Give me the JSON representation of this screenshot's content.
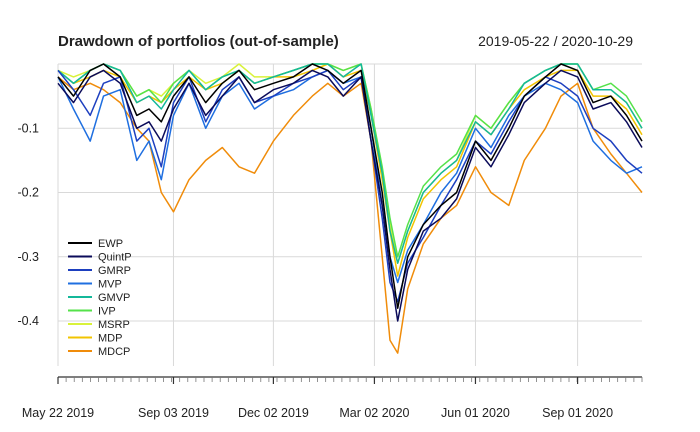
{
  "chart_data": {
    "type": "line",
    "title": "Drawdown of portfolios (out-of-sample)",
    "date_range": "2019-05-22 / 2020-10-29",
    "x_start": "2019-05-22",
    "x_end": "2020-10-29",
    "ylim": [
      -0.47,
      0.0
    ],
    "y_ticks": [
      {
        "value": -0.1,
        "label": "-0.1"
      },
      {
        "value": -0.2,
        "label": "-0.2"
      },
      {
        "value": -0.3,
        "label": "-0.3"
      },
      {
        "value": -0.4,
        "label": "-0.4"
      }
    ],
    "x_ticks": [
      {
        "date": "2019-05-22",
        "label": "May 22 2019"
      },
      {
        "date": "2019-09-03",
        "label": "Sep 03 2019"
      },
      {
        "date": "2019-12-02",
        "label": "Dec 02 2019"
      },
      {
        "date": "2020-03-02",
        "label": "Mar 02 2020"
      },
      {
        "date": "2020-06-01",
        "label": "Jun 01 2020"
      },
      {
        "date": "2020-09-01",
        "label": "Sep 01 2020"
      }
    ],
    "grid": true,
    "legend_position": "bottom-left",
    "series": [
      {
        "name": "EWP",
        "color": "#000000",
        "x": [
          "2019-05-22",
          "2019-06-05",
          "2019-06-20",
          "2019-07-02",
          "2019-07-17",
          "2019-08-01",
          "2019-08-12",
          "2019-08-23",
          "2019-09-03",
          "2019-09-17",
          "2019-10-02",
          "2019-10-17",
          "2019-11-01",
          "2019-11-15",
          "2019-12-02",
          "2019-12-20",
          "2020-01-06",
          "2020-01-20",
          "2020-02-03",
          "2020-02-19",
          "2020-02-28",
          "2020-03-09",
          "2020-03-16",
          "2020-03-23",
          "2020-04-01",
          "2020-04-15",
          "2020-05-01",
          "2020-05-15",
          "2020-06-01",
          "2020-06-15",
          "2020-07-01",
          "2020-07-15",
          "2020-08-03",
          "2020-08-17",
          "2020-09-01",
          "2020-09-15",
          "2020-10-01",
          "2020-10-15",
          "2020-10-29"
        ],
        "values": [
          -0.02,
          -0.05,
          -0.01,
          0,
          -0.02,
          -0.08,
          -0.07,
          -0.09,
          -0.05,
          -0.02,
          -0.06,
          -0.03,
          -0.01,
          -0.04,
          -0.03,
          -0.02,
          0,
          -0.01,
          -0.03,
          -0.01,
          -0.1,
          -0.2,
          -0.3,
          -0.38,
          -0.3,
          -0.25,
          -0.22,
          -0.2,
          -0.12,
          -0.15,
          -0.1,
          -0.05,
          -0.02,
          0,
          -0.01,
          -0.06,
          -0.05,
          -0.08,
          -0.12
        ]
      },
      {
        "name": "QuintP",
        "color": "#0b0b5a",
        "x": [
          "2019-05-22",
          "2019-06-05",
          "2019-06-20",
          "2019-07-02",
          "2019-07-17",
          "2019-08-01",
          "2019-08-12",
          "2019-08-23",
          "2019-09-03",
          "2019-09-17",
          "2019-10-02",
          "2019-10-17",
          "2019-11-01",
          "2019-11-15",
          "2019-12-02",
          "2019-12-20",
          "2020-01-06",
          "2020-01-20",
          "2020-02-03",
          "2020-02-19",
          "2020-02-28",
          "2020-03-09",
          "2020-03-16",
          "2020-03-23",
          "2020-04-01",
          "2020-04-15",
          "2020-05-01",
          "2020-05-15",
          "2020-06-01",
          "2020-06-15",
          "2020-07-01",
          "2020-07-15",
          "2020-08-03",
          "2020-08-17",
          "2020-09-01",
          "2020-09-15",
          "2020-10-01",
          "2020-10-15",
          "2020-10-29"
        ],
        "values": [
          -0.03,
          -0.06,
          -0.02,
          -0.01,
          -0.03,
          -0.1,
          -0.09,
          -0.12,
          -0.07,
          -0.03,
          -0.08,
          -0.05,
          -0.02,
          -0.06,
          -0.04,
          -0.03,
          -0.01,
          -0.02,
          -0.05,
          -0.02,
          -0.12,
          -0.22,
          -0.32,
          -0.4,
          -0.32,
          -0.26,
          -0.24,
          -0.21,
          -0.13,
          -0.16,
          -0.11,
          -0.06,
          -0.03,
          -0.01,
          -0.02,
          -0.07,
          -0.06,
          -0.09,
          -0.13
        ]
      },
      {
        "name": "GMRP",
        "color": "#1d3fbf",
        "x": [
          "2019-05-22",
          "2019-06-05",
          "2019-06-20",
          "2019-07-02",
          "2019-07-17",
          "2019-08-01",
          "2019-08-12",
          "2019-08-23",
          "2019-09-03",
          "2019-09-17",
          "2019-10-02",
          "2019-10-17",
          "2019-11-01",
          "2019-11-15",
          "2019-12-02",
          "2019-12-20",
          "2020-01-06",
          "2020-01-20",
          "2020-02-03",
          "2020-02-19",
          "2020-02-28",
          "2020-03-09",
          "2020-03-16",
          "2020-03-23",
          "2020-04-01",
          "2020-04-15",
          "2020-05-01",
          "2020-05-15",
          "2020-06-01",
          "2020-06-15",
          "2020-07-01",
          "2020-07-15",
          "2020-08-03",
          "2020-08-17",
          "2020-09-01",
          "2020-09-15",
          "2020-10-01",
          "2020-10-15",
          "2020-10-29"
        ],
        "values": [
          -0.01,
          -0.04,
          -0.08,
          -0.03,
          -0.02,
          -0.12,
          -0.1,
          -0.16,
          -0.06,
          -0.02,
          -0.09,
          -0.04,
          -0.02,
          -0.06,
          -0.05,
          -0.03,
          -0.02,
          -0.01,
          -0.04,
          -0.02,
          -0.12,
          -0.24,
          -0.34,
          -0.37,
          -0.31,
          -0.27,
          -0.22,
          -0.18,
          -0.12,
          -0.14,
          -0.09,
          -0.05,
          -0.02,
          -0.03,
          -0.05,
          -0.1,
          -0.12,
          -0.15,
          -0.17
        ]
      },
      {
        "name": "MVP",
        "color": "#1f6fe0",
        "x": [
          "2019-05-22",
          "2019-06-05",
          "2019-06-20",
          "2019-07-02",
          "2019-07-17",
          "2019-08-01",
          "2019-08-12",
          "2019-08-23",
          "2019-09-03",
          "2019-09-17",
          "2019-10-02",
          "2019-10-17",
          "2019-11-01",
          "2019-11-15",
          "2019-12-02",
          "2019-12-20",
          "2020-01-06",
          "2020-01-20",
          "2020-02-03",
          "2020-02-19",
          "2020-02-28",
          "2020-03-09",
          "2020-03-16",
          "2020-03-23",
          "2020-04-01",
          "2020-04-15",
          "2020-05-01",
          "2020-05-15",
          "2020-06-01",
          "2020-06-15",
          "2020-07-01",
          "2020-07-15",
          "2020-08-03",
          "2020-08-17",
          "2020-09-01",
          "2020-09-15",
          "2020-10-01",
          "2020-10-15",
          "2020-10-29"
        ],
        "values": [
          -0.02,
          -0.07,
          -0.12,
          -0.05,
          -0.04,
          -0.15,
          -0.12,
          -0.18,
          -0.08,
          -0.03,
          -0.1,
          -0.05,
          -0.03,
          -0.07,
          -0.05,
          -0.04,
          -0.02,
          -0.01,
          -0.03,
          -0.02,
          -0.1,
          -0.22,
          -0.3,
          -0.34,
          -0.29,
          -0.25,
          -0.2,
          -0.17,
          -0.1,
          -0.13,
          -0.08,
          -0.05,
          -0.03,
          -0.04,
          -0.06,
          -0.12,
          -0.15,
          -0.17,
          -0.16
        ]
      },
      {
        "name": "GMVP",
        "color": "#14b89a",
        "x": [
          "2019-05-22",
          "2019-06-05",
          "2019-06-20",
          "2019-07-02",
          "2019-07-17",
          "2019-08-01",
          "2019-08-12",
          "2019-08-23",
          "2019-09-03",
          "2019-09-17",
          "2019-10-02",
          "2019-10-17",
          "2019-11-01",
          "2019-11-15",
          "2019-12-02",
          "2019-12-20",
          "2020-01-06",
          "2020-01-20",
          "2020-02-03",
          "2020-02-19",
          "2020-02-28",
          "2020-03-09",
          "2020-03-16",
          "2020-03-23",
          "2020-04-01",
          "2020-04-15",
          "2020-05-01",
          "2020-05-15",
          "2020-06-01",
          "2020-06-15",
          "2020-07-01",
          "2020-07-15",
          "2020-08-03",
          "2020-08-17",
          "2020-09-01",
          "2020-09-15",
          "2020-10-01",
          "2020-10-15",
          "2020-10-29"
        ],
        "values": [
          -0.01,
          -0.03,
          -0.01,
          0,
          -0.01,
          -0.06,
          -0.05,
          -0.07,
          -0.04,
          -0.01,
          -0.04,
          -0.02,
          -0.01,
          -0.03,
          -0.02,
          -0.01,
          0,
          0,
          -0.02,
          0,
          -0.08,
          -0.17,
          -0.26,
          -0.31,
          -0.26,
          -0.2,
          -0.17,
          -0.15,
          -0.09,
          -0.11,
          -0.07,
          -0.03,
          -0.01,
          0,
          0,
          -0.04,
          -0.04,
          -0.06,
          -0.1
        ]
      },
      {
        "name": "IVP",
        "color": "#55e24a",
        "x": [
          "2019-05-22",
          "2019-06-05",
          "2019-06-20",
          "2019-07-02",
          "2019-07-17",
          "2019-08-01",
          "2019-08-12",
          "2019-08-23",
          "2019-09-03",
          "2019-09-17",
          "2019-10-02",
          "2019-10-17",
          "2019-11-01",
          "2019-11-15",
          "2019-12-02",
          "2019-12-20",
          "2020-01-06",
          "2020-01-20",
          "2020-02-03",
          "2020-02-19",
          "2020-02-28",
          "2020-03-09",
          "2020-03-16",
          "2020-03-23",
          "2020-04-01",
          "2020-04-15",
          "2020-05-01",
          "2020-05-15",
          "2020-06-01",
          "2020-06-15",
          "2020-07-01",
          "2020-07-15",
          "2020-08-03",
          "2020-08-17",
          "2020-09-01",
          "2020-09-15",
          "2020-10-01",
          "2020-10-15",
          "2020-10-29"
        ],
        "values": [
          -0.01,
          -0.03,
          -0.01,
          0,
          -0.01,
          -0.05,
          -0.04,
          -0.06,
          -0.03,
          -0.01,
          -0.04,
          -0.02,
          -0.01,
          -0.03,
          -0.02,
          -0.01,
          0,
          0,
          -0.01,
          0,
          -0.07,
          -0.16,
          -0.24,
          -0.3,
          -0.25,
          -0.19,
          -0.16,
          -0.14,
          -0.08,
          -0.1,
          -0.06,
          -0.03,
          -0.01,
          0,
          0,
          -0.04,
          -0.03,
          -0.05,
          -0.09
        ]
      },
      {
        "name": "MSRP",
        "color": "#d9f23a",
        "x": [
          "2019-05-22",
          "2019-06-05",
          "2019-06-20",
          "2019-07-02",
          "2019-07-17",
          "2019-08-01",
          "2019-08-12",
          "2019-08-23",
          "2019-09-03",
          "2019-09-17",
          "2019-10-02",
          "2019-10-17",
          "2019-11-01",
          "2019-11-15",
          "2019-12-02",
          "2019-12-20",
          "2020-01-06",
          "2020-01-20",
          "2020-02-03",
          "2020-02-19",
          "2020-02-28",
          "2020-03-09",
          "2020-03-16",
          "2020-03-23",
          "2020-04-01",
          "2020-04-15",
          "2020-05-01",
          "2020-05-15",
          "2020-06-01",
          "2020-06-15",
          "2020-07-01",
          "2020-07-15",
          "2020-08-03",
          "2020-08-17",
          "2020-09-01",
          "2020-09-15",
          "2020-10-01",
          "2020-10-15",
          "2020-10-29"
        ],
        "values": [
          -0.01,
          -0.02,
          -0.01,
          0,
          -0.01,
          -0.05,
          -0.04,
          -0.05,
          -0.03,
          -0.01,
          -0.03,
          -0.02,
          0,
          -0.02,
          -0.02,
          -0.01,
          0,
          0,
          -0.01,
          0,
          -0.07,
          -0.17,
          -0.25,
          -0.31,
          -0.26,
          -0.2,
          -0.17,
          -0.15,
          -0.08,
          -0.1,
          -0.06,
          -0.03,
          -0.01,
          0,
          0,
          -0.04,
          -0.04,
          -0.06,
          -0.1
        ]
      },
      {
        "name": "MDP",
        "color": "#f2c400",
        "x": [
          "2019-05-22",
          "2019-06-05",
          "2019-06-20",
          "2019-07-02",
          "2019-07-17",
          "2019-08-01",
          "2019-08-12",
          "2019-08-23",
          "2019-09-03",
          "2019-09-17",
          "2019-10-02",
          "2019-10-17",
          "2019-11-01",
          "2019-11-15",
          "2019-12-02",
          "2019-12-20",
          "2020-01-06",
          "2020-01-20",
          "2020-02-03",
          "2020-02-19",
          "2020-02-28",
          "2020-03-09",
          "2020-03-16",
          "2020-03-23",
          "2020-04-01",
          "2020-04-15",
          "2020-05-01",
          "2020-05-15",
          "2020-06-01",
          "2020-06-15",
          "2020-07-01",
          "2020-07-15",
          "2020-08-03",
          "2020-08-17",
          "2020-09-01",
          "2020-09-15",
          "2020-10-01",
          "2020-10-15",
          "2020-10-29"
        ],
        "values": [
          -0.01,
          -0.03,
          -0.02,
          -0.01,
          -0.02,
          -0.06,
          -0.05,
          -0.06,
          -0.04,
          -0.02,
          -0.04,
          -0.03,
          -0.01,
          -0.03,
          -0.02,
          -0.02,
          -0.01,
          0,
          -0.02,
          -0.01,
          -0.08,
          -0.18,
          -0.26,
          -0.33,
          -0.27,
          -0.21,
          -0.18,
          -0.16,
          -0.09,
          -0.11,
          -0.07,
          -0.04,
          -0.02,
          -0.01,
          -0.01,
          -0.05,
          -0.05,
          -0.07,
          -0.11
        ]
      },
      {
        "name": "MDCP",
        "color": "#f08c0a",
        "x": [
          "2019-05-22",
          "2019-06-05",
          "2019-06-20",
          "2019-07-02",
          "2019-07-17",
          "2019-08-01",
          "2019-08-12",
          "2019-08-23",
          "2019-09-03",
          "2019-09-17",
          "2019-10-02",
          "2019-10-17",
          "2019-11-01",
          "2019-11-15",
          "2019-12-02",
          "2019-12-20",
          "2020-01-06",
          "2020-01-20",
          "2020-02-03",
          "2020-02-19",
          "2020-02-28",
          "2020-03-09",
          "2020-03-16",
          "2020-03-23",
          "2020-04-01",
          "2020-04-15",
          "2020-05-01",
          "2020-05-15",
          "2020-06-01",
          "2020-06-15",
          "2020-07-01",
          "2020-07-15",
          "2020-08-03",
          "2020-08-17",
          "2020-09-01",
          "2020-09-15",
          "2020-10-01",
          "2020-10-15",
          "2020-10-29"
        ],
        "values": [
          -0.02,
          -0.04,
          -0.03,
          -0.04,
          -0.06,
          -0.1,
          -0.12,
          -0.2,
          -0.23,
          -0.18,
          -0.15,
          -0.13,
          -0.16,
          -0.17,
          -0.12,
          -0.08,
          -0.05,
          -0.03,
          -0.05,
          -0.03,
          -0.12,
          -0.3,
          -0.43,
          -0.45,
          -0.35,
          -0.28,
          -0.24,
          -0.22,
          -0.16,
          -0.2,
          -0.22,
          -0.15,
          -0.1,
          -0.05,
          -0.03,
          -0.1,
          -0.14,
          -0.17,
          -0.2
        ]
      }
    ]
  }
}
